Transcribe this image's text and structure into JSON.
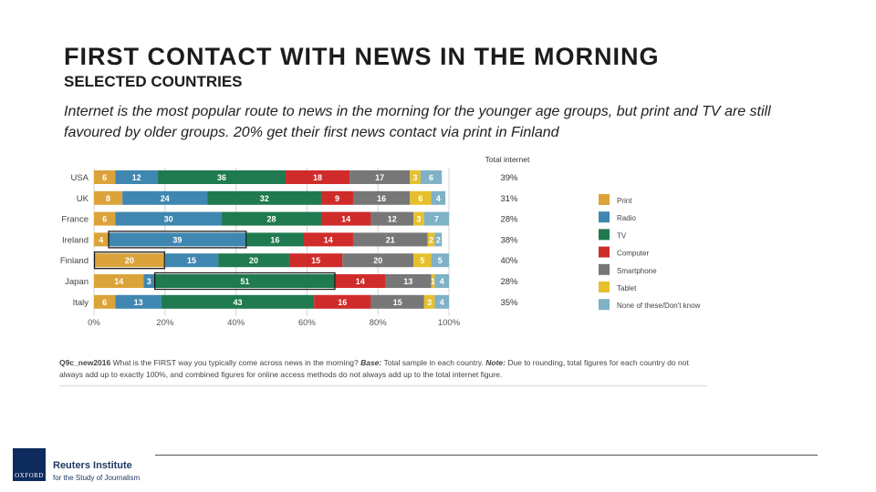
{
  "header": {
    "title": "FIRST CONTACT WITH NEWS IN THE MORNING",
    "subtitle": "SELECTED COUNTRIES",
    "description": "Internet is the most popular route to news in the morning for the younger age groups, but print and TV are still favoured by older groups. 20% get their first news contact via print in Finland"
  },
  "chart_data": {
    "type": "bar",
    "orientation": "horizontal",
    "stacked": true,
    "categories": [
      "USA",
      "UK",
      "France",
      "Ireland",
      "Finland",
      "Japan",
      "Italy"
    ],
    "series": [
      {
        "name": "Print",
        "color": "#dba33a",
        "values": [
          6,
          8,
          6,
          4,
          20,
          14,
          6
        ]
      },
      {
        "name": "Radio",
        "color": "#3f87b0",
        "values": [
          12,
          24,
          30,
          39,
          15,
          3,
          13
        ]
      },
      {
        "name": "TV",
        "color": "#1f7a4f",
        "values": [
          36,
          32,
          28,
          16,
          20,
          51,
          43
        ]
      },
      {
        "name": "Computer",
        "color": "#d02b2b",
        "values": [
          18,
          9,
          14,
          14,
          15,
          14,
          16
        ]
      },
      {
        "name": "Smartphone",
        "color": "#777777",
        "values": [
          17,
          16,
          12,
          21,
          20,
          13,
          15
        ]
      },
      {
        "name": "Tablet",
        "color": "#e5c02c",
        "values": [
          3,
          6,
          3,
          2,
          5,
          1,
          3
        ]
      },
      {
        "name": "None of these/Don't know",
        "color": "#7fb1c7",
        "values": [
          6,
          4,
          7,
          2,
          5,
          4,
          4
        ]
      }
    ],
    "highlighted": [
      {
        "category": "Ireland",
        "series": "Radio"
      },
      {
        "category": "Finland",
        "series": "Print"
      },
      {
        "category": "Japan",
        "series": "TV"
      }
    ],
    "x_ticks": [
      "0%",
      "20%",
      "40%",
      "60%",
      "80%",
      "100%"
    ],
    "xlim": [
      0,
      100
    ],
    "total_internet_label": "Total internet",
    "total_internet": [
      "39%",
      "31%",
      "28%",
      "38%",
      "40%",
      "28%",
      "35%"
    ],
    "legend_position": "right",
    "grid": true
  },
  "footnote": {
    "question": "Q9c_new2016",
    "text": " What is the FIRST way you typically come across news in the morning? ",
    "base_label": "Base:",
    "base_text": " Total sample in each country. ",
    "note_label": "Note:",
    "note_text": " Due to rounding, total figures for each country do not always add up to exactly 100%, and combined figures for online access methods do not always add up to the total internet figure."
  },
  "branding": {
    "logo_text": "OXFORD",
    "org_name": "Reuters Institute",
    "org_sub": "for the Study of Journalism",
    "logo_color": "#0d2b5c"
  }
}
